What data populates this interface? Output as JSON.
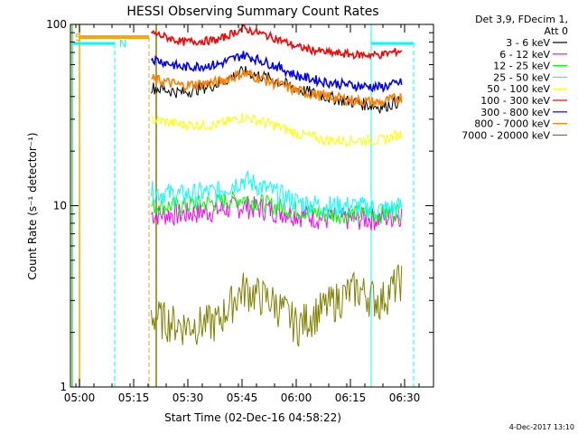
{
  "chart_data": {
    "type": "line",
    "title": "HESSI Observing Summary Count Rates",
    "xlabel": "Start Time (02-Dec-16 04:58:22)",
    "ylabel": "Count Rate (s⁻¹ detector⁻¹)",
    "y_scale": "log",
    "ylim": [
      1,
      100
    ],
    "x_ticks": [
      "05:00",
      "05:15",
      "05:30",
      "05:45",
      "06:00",
      "06:15",
      "06:30"
    ],
    "y_ticks": [
      "1",
      "10",
      "100"
    ],
    "legend_header": [
      "Det 3,9, FDecim 1,",
      "Att 0"
    ],
    "legend_position": "right",
    "footer": "4-Dec-2017 13:10",
    "flags": [
      {
        "label": "S",
        "color": "#ffa500",
        "kind": "orange-bar"
      },
      {
        "label": "N",
        "color": "#00ffff",
        "kind": "night"
      }
    ],
    "series": [
      {
        "name": "3 - 6 keV",
        "color": "#000000",
        "x_minutes": [
          21.5,
          30,
          40,
          47,
          55,
          62,
          70,
          78,
          85,
          91
        ],
        "values": [
          45,
          42,
          47,
          55,
          50,
          44,
          40,
          37,
          35,
          38
        ]
      },
      {
        "name": "6 - 12 keV",
        "color": "#ff00ff",
        "x_minutes": [
          21.5,
          30,
          40,
          47,
          55,
          62,
          70,
          78,
          85,
          91
        ],
        "values": [
          9,
          9,
          9.5,
          10,
          9.5,
          9,
          8.5,
          8.5,
          8.5,
          9
        ]
      },
      {
        "name": "12 - 25 keV",
        "color": "#00ff00",
        "x_minutes": [
          21.5,
          30,
          40,
          47,
          55,
          62,
          70,
          78,
          85,
          91
        ],
        "values": [
          10,
          10,
          10.5,
          11,
          10,
          9.5,
          9,
          9,
          9,
          9.5
        ]
      },
      {
        "name": "25 - 50 keV",
        "color": "#00ffff",
        "x_minutes": [
          21.5,
          30,
          40,
          47,
          55,
          62,
          70,
          78,
          85,
          91
        ],
        "values": [
          12,
          11.5,
          12,
          14,
          12,
          10.5,
          10,
          10,
          9.5,
          10
        ]
      },
      {
        "name": "50 - 100 keV",
        "color": "#ffff00",
        "x_minutes": [
          21.5,
          30,
          40,
          47,
          55,
          62,
          70,
          78,
          85,
          91
        ],
        "values": [
          30,
          28,
          28,
          31,
          28,
          25,
          23,
          23,
          23,
          25
        ]
      },
      {
        "name": "100 - 300 keV",
        "color": "#ff0000",
        "x_minutes": [
          21.5,
          30,
          40,
          47,
          55,
          62,
          70,
          78,
          85,
          91
        ],
        "values": [
          90,
          80,
          82,
          95,
          85,
          75,
          70,
          68,
          68,
          72
        ]
      },
      {
        "name": "300 - 800 keV",
        "color": "#0000ff",
        "x_minutes": [
          21.5,
          30,
          40,
          47,
          55,
          62,
          70,
          78,
          85,
          91
        ],
        "values": [
          65,
          58,
          60,
          68,
          60,
          52,
          48,
          46,
          45,
          48
        ]
      },
      {
        "name": "800 - 7000 keV",
        "color": "#ff8000",
        "x_minutes": [
          21.5,
          30,
          40,
          47,
          55,
          62,
          70,
          78,
          85,
          91
        ],
        "values": [
          50,
          46,
          48,
          54,
          48,
          43,
          40,
          38,
          37,
          40
        ]
      },
      {
        "name": "7000 - 20000 keV",
        "color": "#808000",
        "x_minutes": [
          21.5,
          30,
          40,
          47,
          55,
          62,
          70,
          78,
          85,
          91
        ],
        "values": [
          2.5,
          2.2,
          2.3,
          3.5,
          3.0,
          2.2,
          2.8,
          3.5,
          3.0,
          4.0
        ]
      }
    ]
  }
}
